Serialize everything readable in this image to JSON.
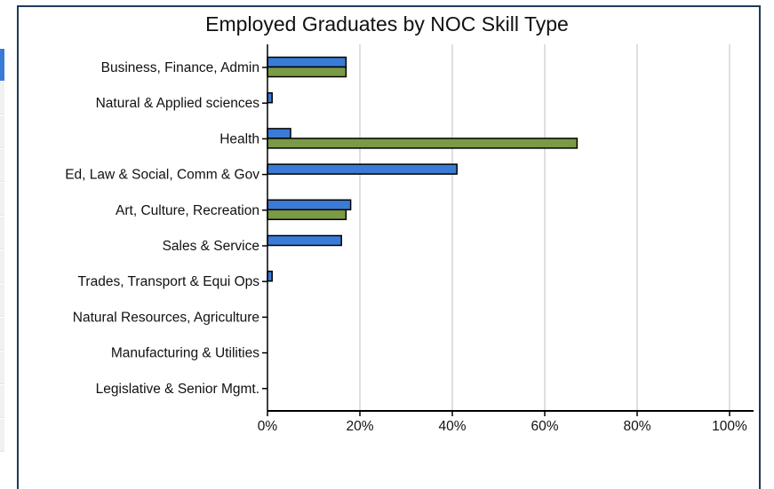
{
  "colors": {
    "frame": "#1f3a5a",
    "accent": "#3a7bd5",
    "series_blue": "#3a7bd5",
    "series_green": "#7a9a45",
    "grid": "#bfbfbf"
  },
  "chart_data": {
    "type": "bar",
    "orientation": "horizontal",
    "title": "Employed Graduates by NOC Skill Type",
    "xlabel": "",
    "ylabel": "",
    "xlim": [
      0,
      105
    ],
    "x_ticks": [
      0,
      20,
      40,
      60,
      80,
      100
    ],
    "x_tick_labels": [
      "0%",
      "20%",
      "40%",
      "60%",
      "80%",
      "100%"
    ],
    "grid": "vertical",
    "legend": "none",
    "categories": [
      "Business, Finance, Admin",
      "Natural & Applied sciences",
      "Health",
      "Ed, Law & Social, Comm & Gov",
      "Art, Culture, Recreation",
      "Sales & Service",
      "Trades, Transport & Equi Ops",
      "Natural Resources, Agriculture",
      "Manufacturing & Utilities",
      "Legislative & Senior Mgmt."
    ],
    "series": [
      {
        "color": "#3a7bd5",
        "values": [
          17,
          1,
          5,
          41,
          18,
          16,
          1,
          0,
          0,
          0
        ]
      },
      {
        "color": "#7a9a45",
        "values": [
          17,
          0,
          67,
          0,
          17,
          0,
          0,
          0,
          0,
          0
        ]
      }
    ]
  }
}
